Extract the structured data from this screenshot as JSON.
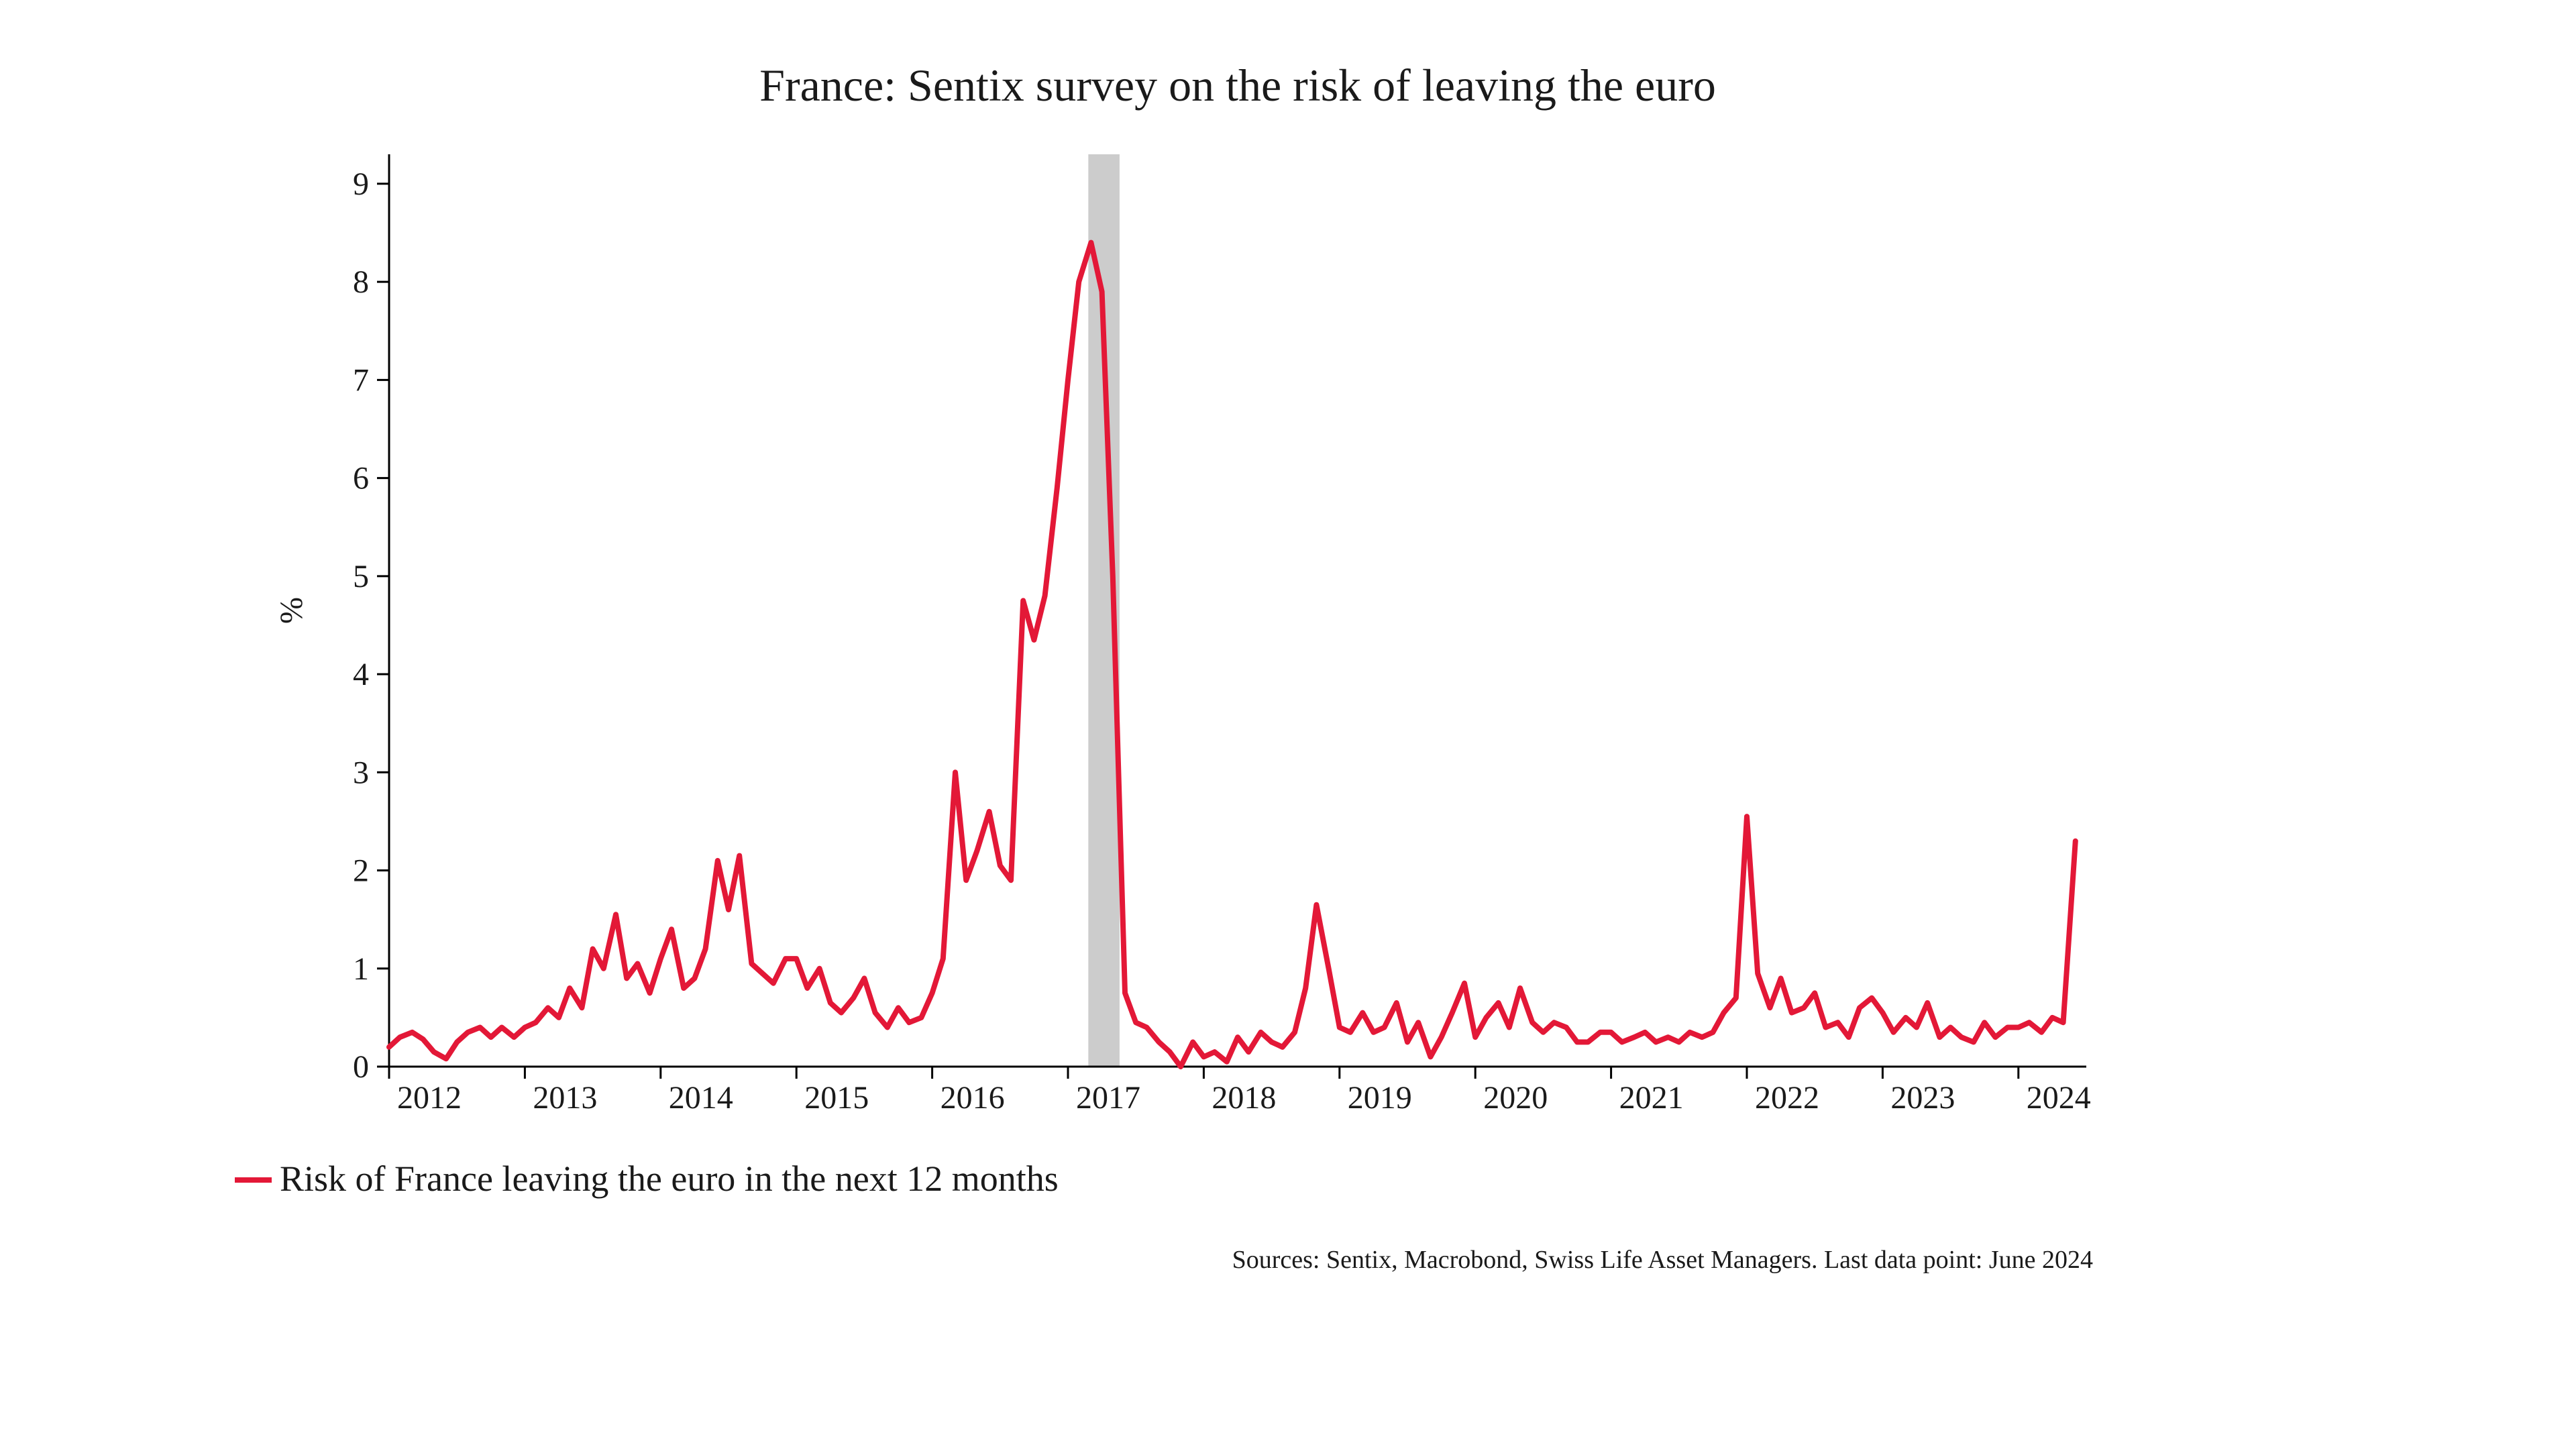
{
  "chart": {
    "type": "line",
    "title": "France: Sentix survey on the risk of leaving the euro",
    "title_fontsize": 68,
    "ylabel": "%",
    "label_fontsize": 48,
    "tick_fontsize": 48,
    "background_color": "#ffffff",
    "axis_color": "#000000",
    "axis_width": 3,
    "line_color": "#e31837",
    "line_width": 8,
    "shaded_band": {
      "x_start": 2017.15,
      "x_end": 2017.38,
      "color": "#cccccc"
    },
    "xlim": [
      2012,
      2024.5
    ],
    "ylim": [
      0,
      9.3
    ],
    "xticks": [
      2012,
      2013,
      2014,
      2015,
      2016,
      2017,
      2018,
      2019,
      2020,
      2021,
      2022,
      2023,
      2024
    ],
    "yticks": [
      0,
      1,
      2,
      3,
      4,
      5,
      6,
      7,
      8,
      9
    ],
    "series": {
      "label": "Risk of France leaving the euro in the next 12 months",
      "x": [
        2012.0,
        2012.08,
        2012.17,
        2012.25,
        2012.33,
        2012.42,
        2012.5,
        2012.58,
        2012.67,
        2012.75,
        2012.83,
        2012.92,
        2013.0,
        2013.08,
        2013.17,
        2013.25,
        2013.33,
        2013.42,
        2013.5,
        2013.58,
        2013.67,
        2013.75,
        2013.83,
        2013.92,
        2014.0,
        2014.08,
        2014.17,
        2014.25,
        2014.33,
        2014.42,
        2014.5,
        2014.58,
        2014.67,
        2014.75,
        2014.83,
        2014.92,
        2015.0,
        2015.08,
        2015.17,
        2015.25,
        2015.33,
        2015.42,
        2015.5,
        2015.58,
        2015.67,
        2015.75,
        2015.83,
        2015.92,
        2016.0,
        2016.08,
        2016.17,
        2016.25,
        2016.33,
        2016.42,
        2016.5,
        2016.58,
        2016.67,
        2016.75,
        2016.83,
        2016.92,
        2017.0,
        2017.08,
        2017.17,
        2017.25,
        2017.33,
        2017.42,
        2017.5,
        2017.58,
        2017.67,
        2017.75,
        2017.83,
        2017.92,
        2018.0,
        2018.08,
        2018.17,
        2018.25,
        2018.33,
        2018.42,
        2018.5,
        2018.58,
        2018.67,
        2018.75,
        2018.83,
        2018.92,
        2019.0,
        2019.08,
        2019.17,
        2019.25,
        2019.33,
        2019.42,
        2019.5,
        2019.58,
        2019.67,
        2019.75,
        2019.83,
        2019.92,
        2020.0,
        2020.08,
        2020.17,
        2020.25,
        2020.33,
        2020.42,
        2020.5,
        2020.58,
        2020.67,
        2020.75,
        2020.83,
        2020.92,
        2021.0,
        2021.08,
        2021.17,
        2021.25,
        2021.33,
        2021.42,
        2021.5,
        2021.58,
        2021.67,
        2021.75,
        2021.83,
        2021.92,
        2022.0,
        2022.08,
        2022.17,
        2022.25,
        2022.33,
        2022.42,
        2022.5,
        2022.58,
        2022.67,
        2022.75,
        2022.83,
        2022.92,
        2023.0,
        2023.08,
        2023.17,
        2023.25,
        2023.33,
        2023.42,
        2023.5,
        2023.58,
        2023.67,
        2023.75,
        2023.83,
        2023.92,
        2024.0,
        2024.08,
        2024.17,
        2024.25,
        2024.33,
        2024.42
      ],
      "y": [
        0.2,
        0.3,
        0.35,
        0.28,
        0.15,
        0.08,
        0.25,
        0.35,
        0.4,
        0.3,
        0.4,
        0.3,
        0.4,
        0.45,
        0.6,
        0.5,
        0.8,
        0.6,
        1.2,
        1.0,
        1.55,
        0.9,
        1.05,
        0.75,
        1.1,
        1.4,
        0.8,
        0.9,
        1.2,
        2.1,
        1.6,
        2.15,
        1.05,
        0.95,
        0.85,
        1.1,
        1.1,
        0.8,
        1.0,
        0.65,
        0.55,
        0.7,
        0.9,
        0.55,
        0.4,
        0.6,
        0.45,
        0.5,
        0.75,
        1.1,
        3.0,
        1.9,
        2.2,
        2.6,
        2.05,
        1.9,
        4.75,
        4.35,
        4.8,
        5.9,
        7.0,
        8.0,
        8.4,
        7.9,
        5.0,
        0.75,
        0.45,
        0.4,
        0.25,
        0.15,
        0.0,
        0.25,
        0.1,
        0.15,
        0.05,
        0.3,
        0.15,
        0.35,
        0.25,
        0.2,
        0.35,
        0.8,
        1.65,
        1.0,
        0.4,
        0.35,
        0.55,
        0.35,
        0.4,
        0.65,
        0.25,
        0.45,
        0.1,
        0.3,
        0.55,
        0.85,
        0.3,
        0.5,
        0.65,
        0.4,
        0.8,
        0.45,
        0.35,
        0.45,
        0.4,
        0.25,
        0.25,
        0.35,
        0.35,
        0.25,
        0.3,
        0.35,
        0.25,
        0.3,
        0.25,
        0.35,
        0.3,
        0.35,
        0.55,
        0.7,
        2.55,
        0.95,
        0.6,
        0.9,
        0.55,
        0.6,
        0.75,
        0.4,
        0.45,
        0.3,
        0.6,
        0.7,
        0.55,
        0.35,
        0.5,
        0.4,
        0.65,
        0.3,
        0.4,
        0.3,
        0.25,
        0.45,
        0.3,
        0.4,
        0.4,
        0.45,
        0.35,
        0.5,
        0.45,
        2.3
      ]
    },
    "legend": {
      "position": "bottom-left",
      "marker_width": 55,
      "marker_height": 8,
      "fontsize": 54
    },
    "source": "Sources: Sentix, Macrobond, Swiss Life Asset Managers. Last data point: June 2024",
    "source_fontsize": 38
  }
}
